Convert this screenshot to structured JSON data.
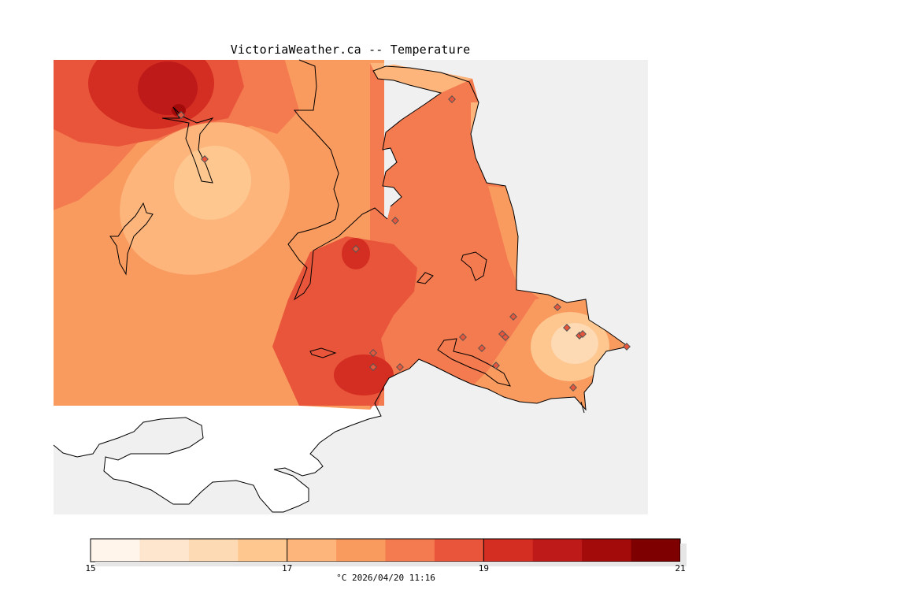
{
  "title": "VictoriaWeather.ca -- Temperature",
  "legend": {
    "colors": [
      "#fff5eb",
      "#fee6ce",
      "#fdd9b4",
      "#fdc78f",
      "#fdb57b",
      "#f99a5e",
      "#f47a50",
      "#e8553b",
      "#d42d22",
      "#bf1a1a",
      "#a30a0a",
      "#7f0000"
    ],
    "tick_labels": [
      "15",
      "17",
      "19",
      "21"
    ],
    "min": 15,
    "max": 21,
    "caption": "°C  2026/04/20 11:16"
  },
  "stations": {
    "symbol": "diamond-marker",
    "count": 26
  }
}
